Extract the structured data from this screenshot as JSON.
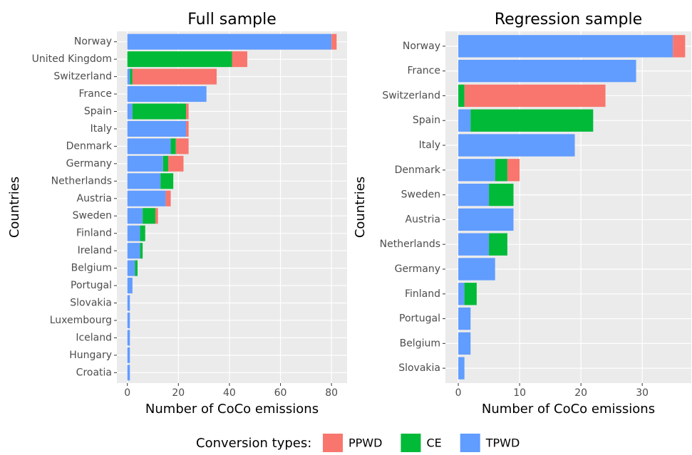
{
  "legend_title": "Conversion types:",
  "chart_data": [
    {
      "type": "bar",
      "orientation": "horizontal",
      "stacked": true,
      "title": "Full sample",
      "x_label": "Number of CoCo emissions",
      "y_label": "Countries",
      "categories": [
        "Norway",
        "United Kingdom",
        "Switzerland",
        "France",
        "Spain",
        "Italy",
        "Denmark",
        "Germany",
        "Netherlands",
        "Austria",
        "Sweden",
        "Finland",
        "Ireland",
        "Belgium",
        "Portugal",
        "Slovakia",
        "Luxembourg",
        "Iceland",
        "Hungary",
        "Croatia"
      ],
      "series": [
        {
          "name": "TPWD",
          "color": "#619cff",
          "values": [
            80,
            0,
            1,
            31,
            2,
            23,
            17,
            14,
            13,
            15,
            6,
            5,
            5,
            3,
            2,
            1,
            1,
            1,
            1,
            1
          ]
        },
        {
          "name": "CE",
          "color": "#00ba38",
          "values": [
            0,
            41,
            1,
            0,
            21,
            0,
            2,
            2,
            5,
            0,
            5,
            2,
            1,
            1,
            0,
            0,
            0,
            0,
            0,
            0
          ]
        },
        {
          "name": "PPWD",
          "color": "#f8766d",
          "values": [
            2,
            6,
            33,
            0,
            1,
            1,
            5,
            6,
            0,
            2,
            1,
            0,
            0,
            0,
            0,
            0,
            0,
            0,
            0,
            0
          ]
        }
      ],
      "xlim": [
        -4.1,
        86.1
      ],
      "xticks": [
        0,
        20,
        40,
        60,
        80
      ],
      "grid": true
    },
    {
      "type": "bar",
      "orientation": "horizontal",
      "stacked": true,
      "title": "Regression sample",
      "x_label": "Number of CoCo emissions",
      "y_label": "Countries",
      "categories": [
        "Norway",
        "France",
        "Switzerland",
        "Spain",
        "Italy",
        "Denmark",
        "Sweden",
        "Austria",
        "Netherlands",
        "Germany",
        "Finland",
        "Portugal",
        "Belgium",
        "Slovakia"
      ],
      "series": [
        {
          "name": "TPWD",
          "color": "#619cff",
          "values": [
            35,
            29,
            0,
            2,
            19,
            6,
            5,
            9,
            5,
            6,
            1,
            2,
            2,
            1
          ]
        },
        {
          "name": "CE",
          "color": "#00ba38",
          "values": [
            0,
            0,
            1,
            20,
            0,
            2,
            4,
            0,
            3,
            0,
            2,
            0,
            0,
            0
          ]
        },
        {
          "name": "PPWD",
          "color": "#f8766d",
          "values": [
            2,
            0,
            23,
            0,
            0,
            2,
            0,
            0,
            0,
            0,
            0,
            0,
            0,
            0
          ]
        }
      ],
      "xlim": [
        -2.1,
        38
      ],
      "xticks": [
        0,
        10,
        20,
        30
      ],
      "grid": true
    }
  ]
}
